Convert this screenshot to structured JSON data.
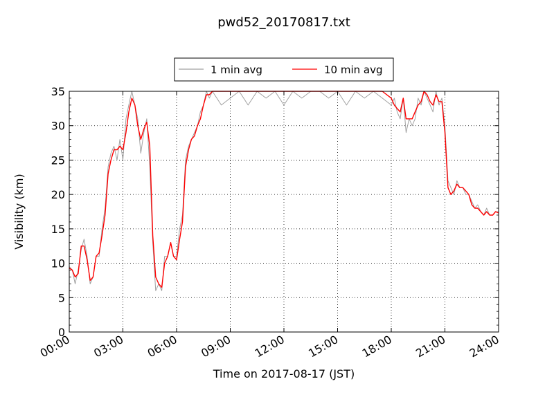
{
  "chart_data": {
    "type": "line",
    "title": "pwd52_20170817.txt",
    "xlabel": "Time on 2017-08-17 (JST)",
    "ylabel": "Visibility (km)",
    "xlim": [
      0,
      24
    ],
    "ylim": [
      0,
      35
    ],
    "x_tick_labels": [
      "00:00",
      "03:00",
      "06:00",
      "09:00",
      "12:00",
      "15:00",
      "18:00",
      "21:00",
      "24:00"
    ],
    "y_tick_labels": [
      "0",
      "5",
      "10",
      "15",
      "20",
      "25",
      "30",
      "35"
    ],
    "grid": true,
    "legend_position": "top-center",
    "series": [
      {
        "name": "1 min avg",
        "color": "#a0a0a0",
        "x": [
          0.0,
          0.17,
          0.33,
          0.5,
          0.67,
          0.83,
          1.0,
          1.17,
          1.33,
          1.5,
          1.67,
          1.83,
          2.0,
          2.17,
          2.33,
          2.5,
          2.67,
          2.83,
          3.0,
          3.17,
          3.33,
          3.5,
          3.67,
          3.83,
          4.0,
          4.17,
          4.33,
          4.5,
          4.67,
          4.83,
          5.0,
          5.17,
          5.33,
          5.5,
          5.67,
          5.83,
          6.0,
          6.17,
          6.33,
          6.5,
          6.67,
          6.83,
          7.0,
          7.17,
          7.33,
          7.5,
          7.67,
          7.83,
          8.0,
          8.5,
          9.0,
          9.5,
          10.0,
          10.5,
          11.0,
          11.5,
          12.0,
          12.5,
          13.0,
          13.5,
          14.0,
          14.5,
          15.0,
          15.5,
          16.0,
          16.5,
          17.0,
          17.5,
          18.0,
          18.17,
          18.33,
          18.5,
          18.67,
          18.83,
          19.0,
          19.17,
          19.33,
          19.5,
          19.67,
          19.83,
          20.0,
          20.17,
          20.33,
          20.5,
          20.67,
          20.83,
          21.0,
          21.17,
          21.33,
          21.5,
          21.67,
          21.83,
          22.0,
          22.17,
          22.33,
          22.5,
          22.67,
          22.83,
          23.0,
          23.17,
          23.33,
          23.5,
          23.67,
          23.83,
          24.0
        ],
        "values": [
          9.5,
          9,
          7,
          9,
          12,
          13.5,
          11,
          7,
          8,
          11,
          11,
          15,
          18,
          24,
          26,
          27,
          25,
          28,
          25,
          31,
          33,
          35,
          33,
          31,
          26,
          29,
          31,
          24,
          13,
          6,
          7,
          6,
          11,
          11,
          13,
          11,
          11,
          15,
          17,
          25,
          27,
          28,
          29,
          30,
          32,
          33,
          35,
          34,
          35,
          33,
          34,
          35,
          33,
          35,
          34,
          35,
          33,
          35,
          34,
          35,
          35,
          34,
          35,
          33,
          35,
          34,
          35,
          34,
          33,
          34,
          32,
          31,
          34,
          29,
          31,
          30,
          31,
          34,
          33,
          35,
          34,
          33,
          32,
          35,
          33,
          34,
          30,
          22,
          21,
          20,
          22,
          21,
          21,
          20,
          20,
          19,
          18,
          18.5,
          17.5,
          17,
          18,
          17,
          17,
          17.5,
          17.5
        ]
      },
      {
        "name": "10 min avg",
        "color": "#ff0000",
        "x": [
          0.0,
          0.17,
          0.33,
          0.5,
          0.67,
          0.83,
          1.0,
          1.17,
          1.33,
          1.5,
          1.67,
          1.83,
          2.0,
          2.17,
          2.33,
          2.5,
          2.67,
          2.83,
          3.0,
          3.17,
          3.33,
          3.5,
          3.67,
          3.83,
          4.0,
          4.17,
          4.33,
          4.5,
          4.67,
          4.83,
          5.0,
          5.17,
          5.33,
          5.5,
          5.67,
          5.83,
          6.0,
          6.17,
          6.33,
          6.5,
          6.67,
          6.83,
          7.0,
          7.17,
          7.33,
          7.5,
          7.67,
          7.83,
          8.0,
          8.5,
          9.0,
          9.5,
          10.0,
          10.5,
          11.0,
          11.5,
          12.0,
          12.5,
          13.0,
          13.5,
          14.0,
          14.5,
          15.0,
          15.5,
          16.0,
          16.5,
          17.0,
          17.5,
          18.0,
          18.17,
          18.33,
          18.5,
          18.67,
          18.83,
          19.0,
          19.17,
          19.33,
          19.5,
          19.67,
          19.83,
          20.0,
          20.17,
          20.33,
          20.5,
          20.67,
          20.83,
          21.0,
          21.17,
          21.33,
          21.5,
          21.67,
          21.83,
          22.0,
          22.17,
          22.33,
          22.5,
          22.67,
          22.83,
          23.0,
          23.17,
          23.33,
          23.5,
          23.67,
          23.83,
          24.0
        ],
        "values": [
          9.3,
          9,
          8,
          8.5,
          12.5,
          12.5,
          10.5,
          7.5,
          8,
          11,
          11.5,
          14,
          17,
          23,
          25,
          26.5,
          26.5,
          27,
          26.5,
          29,
          32,
          34,
          33,
          30,
          28,
          29.5,
          30.5,
          27,
          14,
          8,
          7,
          6.5,
          10,
          11,
          13,
          11,
          10.5,
          13.5,
          16,
          24,
          26.5,
          28,
          28.5,
          30,
          31,
          33,
          34.5,
          34.5,
          35,
          35,
          35,
          35,
          35,
          35,
          35,
          35,
          35,
          35,
          35,
          35,
          35,
          35,
          35,
          35,
          35,
          35,
          35,
          35,
          34,
          33,
          32.5,
          32,
          34,
          31,
          31,
          31,
          32,
          33,
          33.5,
          35,
          34.5,
          33.5,
          33,
          34.5,
          33.5,
          33.5,
          29,
          21,
          20,
          20.5,
          21.5,
          21,
          21,
          20.5,
          20,
          18.5,
          18,
          18,
          17.5,
          17,
          17.5,
          17,
          17,
          17.5,
          17.3
        ]
      }
    ]
  }
}
